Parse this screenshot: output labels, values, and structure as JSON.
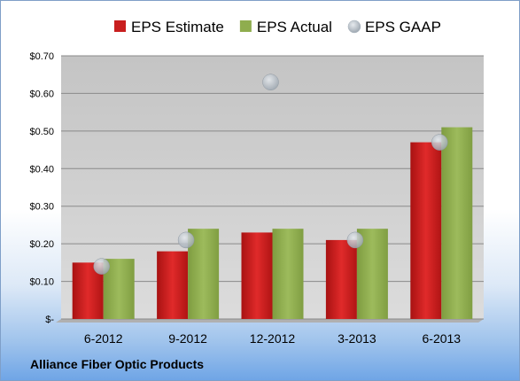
{
  "company_name": "Alliance Fiber Optic Products",
  "chart_data": {
    "type": "bar",
    "categories": [
      "6-2012",
      "9-2012",
      "12-2012",
      "3-2013",
      "6-2013"
    ],
    "series": [
      {
        "name": "EPS Estimate",
        "kind": "bar",
        "color": "#c81e1e",
        "values": [
          0.15,
          0.18,
          0.23,
          0.21,
          0.47
        ]
      },
      {
        "name": "EPS Actual",
        "kind": "bar",
        "color": "#8fad4e",
        "values": [
          0.16,
          0.24,
          0.24,
          0.24,
          0.51
        ]
      },
      {
        "name": "EPS GAAP",
        "kind": "marker",
        "color": "#b8c2cc",
        "values": [
          0.14,
          0.21,
          0.63,
          0.21,
          0.47
        ]
      }
    ],
    "ylim": [
      0,
      0.7
    ],
    "yticks": [
      0,
      0.1,
      0.2,
      0.3,
      0.4,
      0.5,
      0.6,
      0.7
    ],
    "ytick_labels": [
      "$-",
      "$0.10",
      "$0.20",
      "$0.30",
      "$0.40",
      "$0.50",
      "$0.60",
      "$0.70"
    ],
    "legend_position": "top",
    "grid": true
  }
}
